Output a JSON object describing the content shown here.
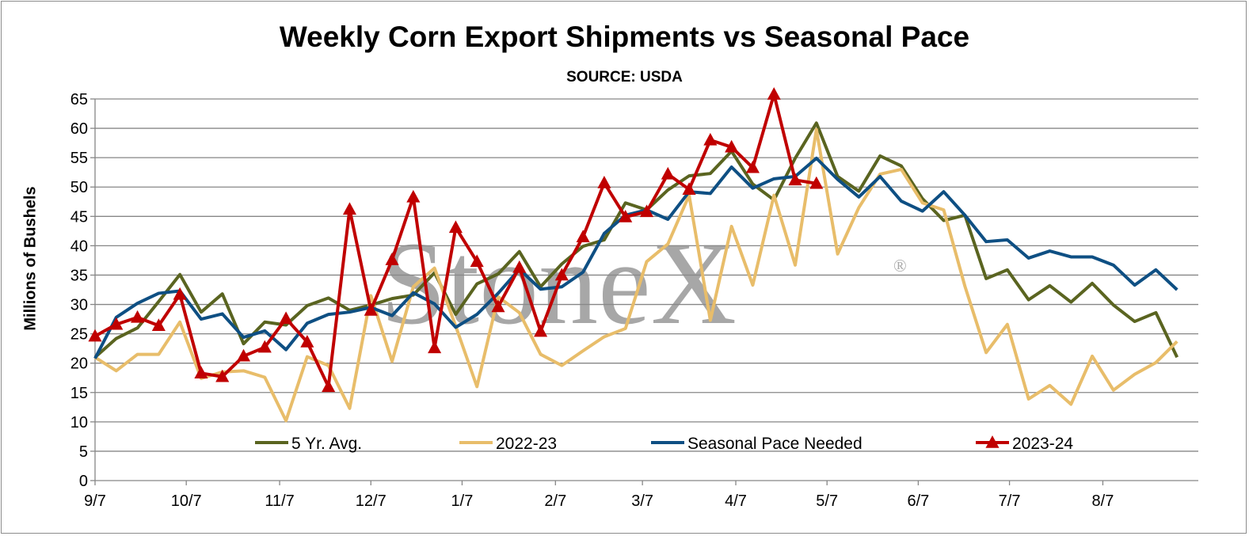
{
  "chart_data": {
    "type": "line",
    "title": "Weekly Corn Export Shipments vs Seasonal Pace",
    "subtitle": "SOURCE: USDA",
    "xlabel": "",
    "ylabel": "Millions of Bushels",
    "ylim": [
      0,
      65
    ],
    "yticks": [
      0,
      5,
      10,
      15,
      20,
      25,
      30,
      35,
      40,
      45,
      50,
      55,
      60,
      65
    ],
    "xlim": [
      0,
      52
    ],
    "xtick_labels": [
      "9/7",
      "10/7",
      "11/7",
      "12/7",
      "1/7",
      "2/7",
      "3/7",
      "4/7",
      "5/7",
      "6/7",
      "7/7",
      "8/7"
    ],
    "xtick_positions": [
      0,
      4.3,
      8.7,
      13,
      17.3,
      21.7,
      25.8,
      30.2,
      34.5,
      38.8,
      43.1,
      47.5
    ],
    "grid": true,
    "legend_position": "bottom-inside",
    "watermark": {
      "text": "StoneX",
      "mark": "®"
    },
    "series": [
      {
        "name": "5 Yr. Avg.",
        "color": "#5a6420",
        "marker": "none",
        "values": [
          21,
          24.2,
          26,
          30.5,
          35.1,
          28.7,
          31.8,
          23.3,
          27,
          26.5,
          29.8,
          31.1,
          29,
          29.9,
          31,
          31.6,
          35.4,
          28.3,
          33.5,
          35.2,
          39,
          33,
          36.9,
          39.9,
          41,
          47.3,
          46.1,
          49.5,
          51.9,
          52.3,
          56.1,
          50.5,
          47.8,
          54.9,
          60.9,
          51.8,
          49.3,
          55.3,
          53.6,
          48,
          44.3,
          45.2,
          34.4,
          35.9,
          30.8,
          33.2,
          30.4,
          33.6,
          29.9,
          27.1,
          28.6,
          21
        ]
      },
      {
        "name": "2022-23",
        "color": "#e8bd6a",
        "marker": "none",
        "values": [
          21,
          18.7,
          21.5,
          21.5,
          27,
          17.4,
          18.5,
          18.7,
          17.6,
          10.2,
          21.1,
          19.6,
          12.3,
          31.5,
          20.3,
          33,
          36.2,
          26.3,
          16,
          31.3,
          28.6,
          21.5,
          19.6,
          22.1,
          24.5,
          25.9,
          37.3,
          40.3,
          48.6,
          27.3,
          43.3,
          33.3,
          48.6,
          36.7,
          59.8,
          38.6,
          46.5,
          52.2,
          53,
          47.3,
          46.1,
          33.1,
          21.8,
          26.6,
          13.9,
          16.2,
          13,
          21.2,
          15.4,
          18.1,
          20.1,
          23.7
        ]
      },
      {
        "name": "Seasonal Pace Needed",
        "color": "#0e4f83",
        "marker": "none",
        "values": [
          20.8,
          27.8,
          30.2,
          31.9,
          32.3,
          27.5,
          28.4,
          24.4,
          25.5,
          22.3,
          26.8,
          28.3,
          28.7,
          29.5,
          28.1,
          32,
          30.1,
          26.1,
          28.3,
          31.9,
          36,
          32.6,
          33,
          35.5,
          42.1,
          45.2,
          46.1,
          44.5,
          49.2,
          48.9,
          53.4,
          49.8,
          51.4,
          51.8,
          54.9,
          51.3,
          48.3,
          51.8,
          47.6,
          45.9,
          49.2,
          45.2,
          40.7,
          41,
          37.9,
          39.1,
          38.1,
          38.1,
          36.7,
          33.3,
          35.9,
          32.5
        ]
      },
      {
        "name": "2023-24",
        "color": "#c00000",
        "marker": "triangle",
        "values": [
          24.6,
          26.6,
          27.8,
          26.4,
          31.7,
          18.3,
          17.7,
          21.2,
          22.7,
          27.6,
          23.6,
          16,
          46.2,
          29,
          37.6,
          48.3,
          22.6,
          43.1,
          37.3,
          29.6,
          36.3,
          25.4,
          35,
          41.5,
          50.7,
          44.9,
          45.8,
          52.2,
          49.6,
          58,
          56.8,
          53.3,
          65.8,
          51.2,
          50.6
        ]
      }
    ]
  }
}
